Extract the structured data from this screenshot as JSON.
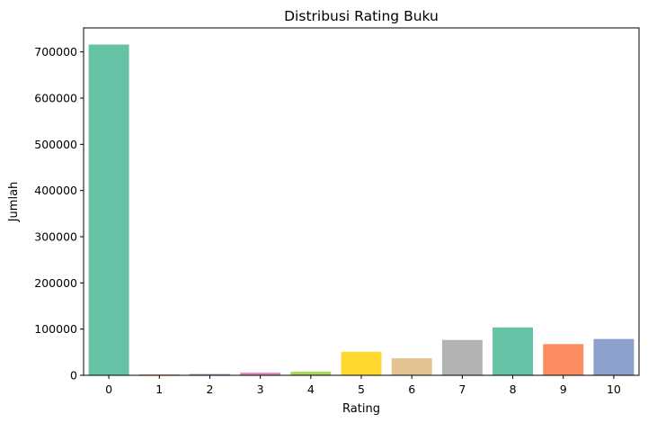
{
  "chart_data": {
    "type": "bar",
    "title": "Distribusi Rating Buku",
    "xlabel": "Rating",
    "ylabel": "Jumlah",
    "categories": [
      "0",
      "1",
      "2",
      "3",
      "4",
      "5",
      "6",
      "7",
      "8",
      "9",
      "10"
    ],
    "values": [
      716000,
      1770,
      2760,
      5820,
      7620,
      50970,
      36920,
      76460,
      103740,
      67540,
      78610
    ],
    "colors": [
      "#66c2a5",
      "#fc8d62",
      "#8da0cb",
      "#e78ac3",
      "#a6d854",
      "#ffd92f",
      "#e5c494",
      "#b3b3b3",
      "#66c2a5",
      "#fc8d62",
      "#8da0cb"
    ],
    "ylim": [
      0,
      752000
    ],
    "yticks": [
      0,
      100000,
      200000,
      300000,
      400000,
      500000,
      600000,
      700000
    ],
    "grid": false,
    "legend": "none"
  }
}
